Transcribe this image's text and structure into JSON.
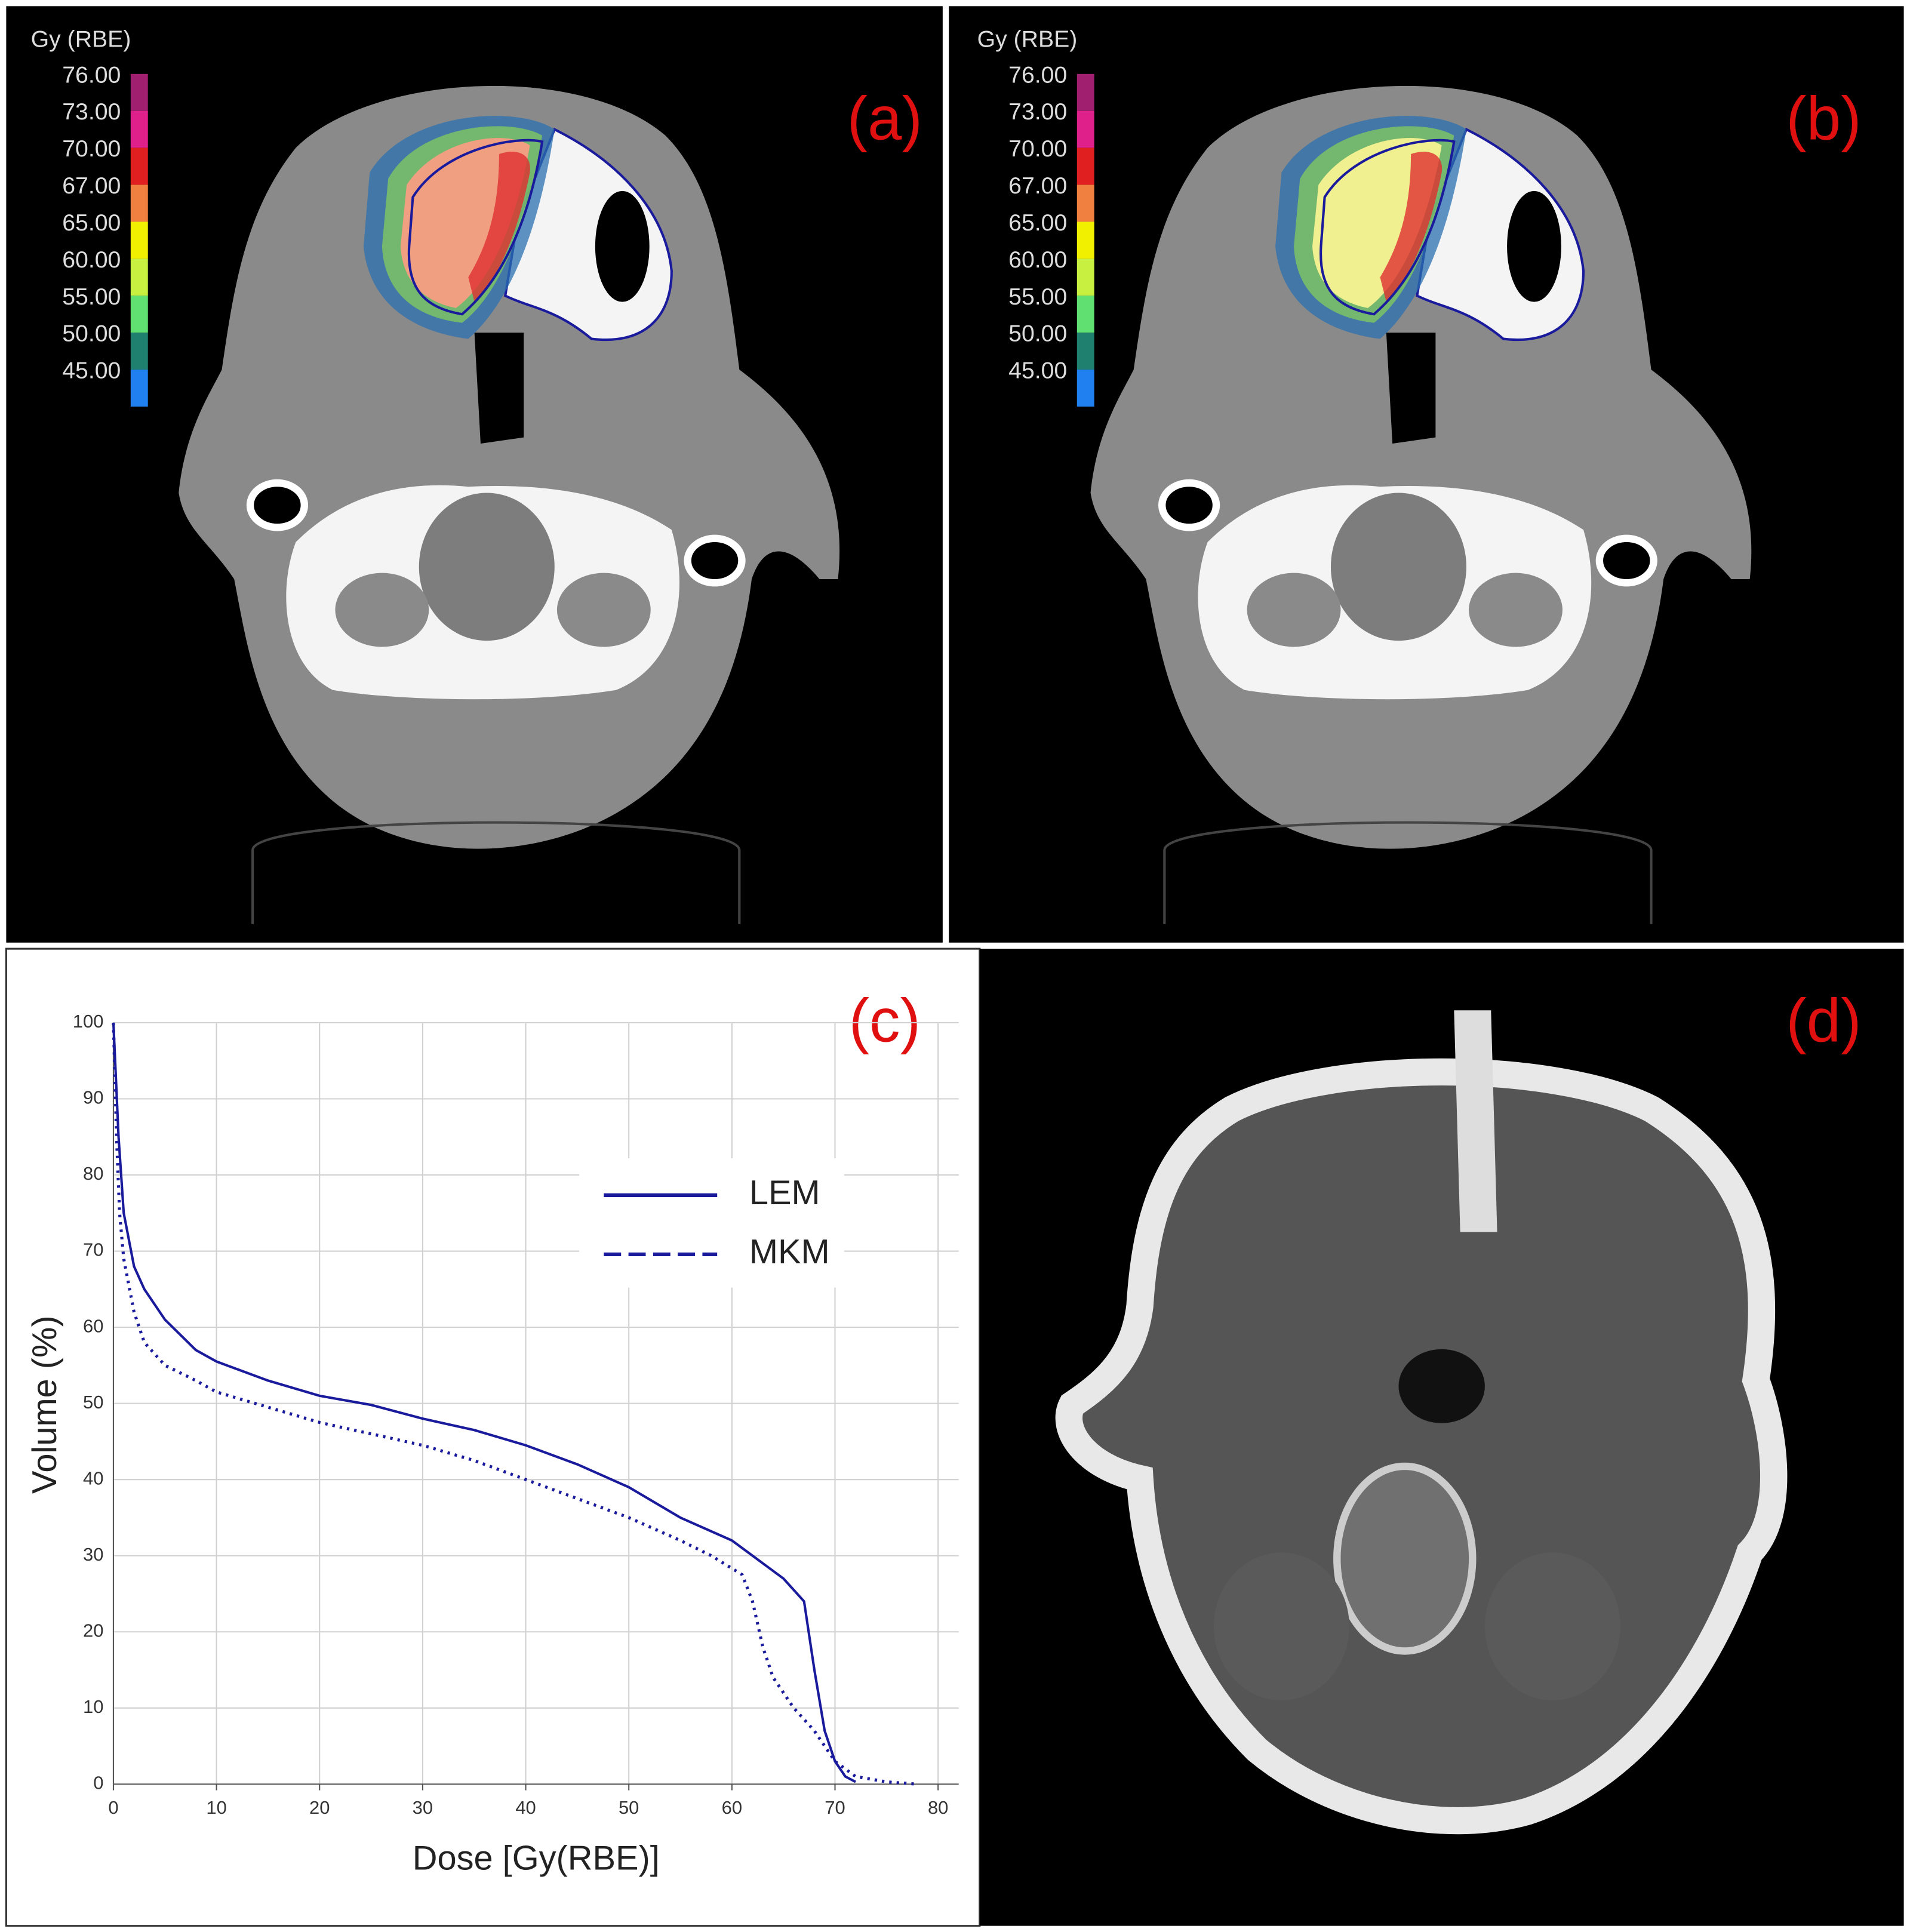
{
  "panels": {
    "a": {
      "label": "(a)",
      "colorbar": {
        "title": "Gy (RBE)",
        "ticks": [
          {
            "value": 76,
            "label": "76.00"
          },
          {
            "value": 73,
            "label": "73.00"
          },
          {
            "value": 70,
            "label": "70.00"
          },
          {
            "value": 67,
            "label": "67.00"
          },
          {
            "value": 65,
            "label": "65.00"
          },
          {
            "value": 60,
            "label": "60.00"
          },
          {
            "value": 55,
            "label": "55.00"
          },
          {
            "value": 50,
            "label": "50.00"
          },
          {
            "value": 45,
            "label": "45.00"
          }
        ],
        "colors": [
          "#a0206f",
          "#e0208a",
          "#e02020",
          "#f08040",
          "#f0f000",
          "#c8f040",
          "#60e070",
          "#208070",
          "#2080f0"
        ]
      }
    },
    "b": {
      "label": "(b)",
      "colorbar": {
        "title": "Gy (RBE)",
        "ticks": [
          {
            "value": 76,
            "label": "76.00"
          },
          {
            "value": 73,
            "label": "73.00"
          },
          {
            "value": 70,
            "label": "70.00"
          },
          {
            "value": 67,
            "label": "67.00"
          },
          {
            "value": 65,
            "label": "65.00"
          },
          {
            "value": 60,
            "label": "60.00"
          },
          {
            "value": 55,
            "label": "55.00"
          },
          {
            "value": 50,
            "label": "50.00"
          },
          {
            "value": 45,
            "label": "45.00"
          }
        ],
        "colors": [
          "#a0206f",
          "#e0208a",
          "#e02020",
          "#f08040",
          "#f0f000",
          "#c8f040",
          "#60e070",
          "#208070",
          "#2080f0"
        ]
      }
    },
    "d": {
      "label": "(d)"
    }
  },
  "chart_data": {
    "type": "line",
    "label": "(c)",
    "xlabel": "Dose [Gy(RBE)]",
    "ylabel": "Volume (%)",
    "xlim": [
      0,
      82
    ],
    "ylim": [
      0,
      100
    ],
    "xticks": [
      0,
      10,
      20,
      30,
      40,
      50,
      60,
      70,
      80
    ],
    "yticks": [
      0,
      10,
      20,
      30,
      40,
      50,
      60,
      70,
      80,
      90,
      100
    ],
    "grid": true,
    "series": [
      {
        "name": "LEM",
        "color": "#1a1a9c",
        "line_style": "solid",
        "x": [
          0,
          0.5,
          1,
          2,
          3,
          5,
          8,
          10,
          15,
          20,
          25,
          30,
          35,
          40,
          45,
          50,
          55,
          60,
          63,
          65,
          67,
          68,
          69,
          70,
          71,
          72
        ],
        "values": [
          100,
          85,
          75,
          68,
          65,
          61,
          57,
          55.5,
          53,
          51,
          49.8,
          48,
          46.5,
          44.5,
          42,
          39,
          35,
          32,
          29,
          27,
          24,
          15,
          7,
          3,
          1,
          0.3
        ]
      },
      {
        "name": "MKM",
        "color": "#1a1a9c",
        "line_style": "dotted",
        "x": [
          0,
          0.3,
          0.6,
          1,
          2,
          3,
          5,
          8,
          10,
          15,
          20,
          25,
          30,
          35,
          40,
          45,
          50,
          55,
          58,
          61,
          62,
          63,
          64,
          66,
          68,
          70,
          72,
          75,
          78
        ],
        "values": [
          100,
          85,
          75,
          69,
          62,
          58,
          55,
          53,
          51.5,
          49.5,
          47.5,
          46,
          44.5,
          42.5,
          40,
          37.5,
          35,
          32,
          30,
          27.5,
          24,
          18,
          14,
          10,
          7,
          3,
          1,
          0.3,
          0
        ]
      }
    ]
  }
}
